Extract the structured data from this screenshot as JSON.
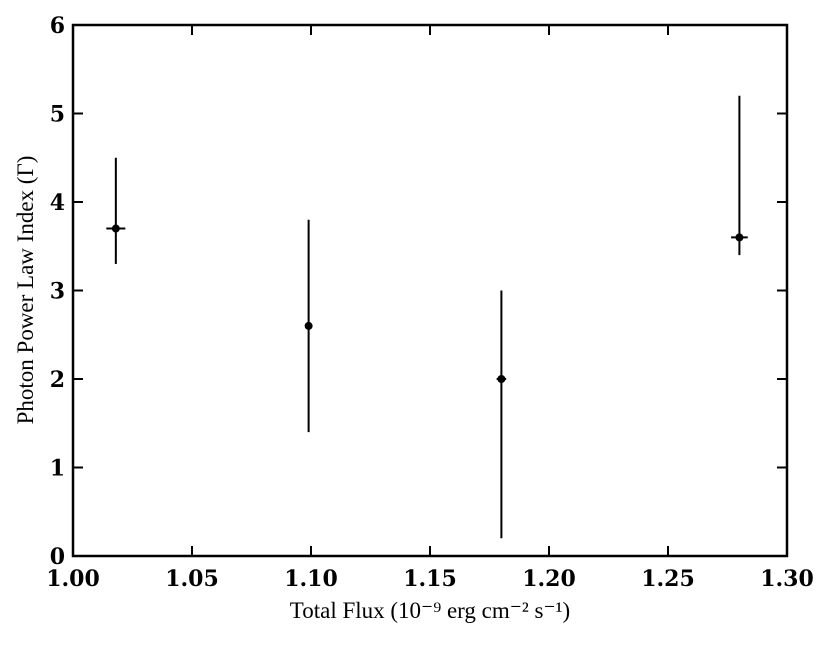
{
  "chart_data": {
    "type": "scatter",
    "x_label": "Total Flux (10⁻⁹ erg cm⁻² s⁻¹)",
    "y_label": "Photon Power Law Index (Γ)",
    "series": [
      {
        "color": "#000000",
        "x": [
          1.018,
          1.099,
          1.18,
          1.28
        ],
        "values": [
          3.7,
          2.6,
          2.0,
          3.6
        ],
        "yerr_plus": [
          0.8,
          1.2,
          1.0,
          1.6
        ],
        "yerr_minus": [
          0.4,
          1.2,
          1.8,
          0.2
        ],
        "xerr": [
          0.004,
          0.001,
          0.002,
          0.0035
        ]
      }
    ],
    "xlim": [
      1.0,
      1.3
    ],
    "xticks": [
      {
        "value": 1.0,
        "label": "1.00"
      },
      {
        "value": 1.05,
        "label": "1.05"
      },
      {
        "value": 1.1,
        "label": "1.10"
      },
      {
        "value": 1.15,
        "label": "1.15"
      },
      {
        "value": 1.2,
        "label": "1.20"
      },
      {
        "value": 1.25,
        "label": "1.25"
      },
      {
        "value": 1.3,
        "label": "1.30"
      }
    ],
    "ylim": [
      0,
      6
    ],
    "yticks": [
      0,
      1,
      2,
      3,
      4,
      5,
      6
    ],
    "grid": false
  }
}
